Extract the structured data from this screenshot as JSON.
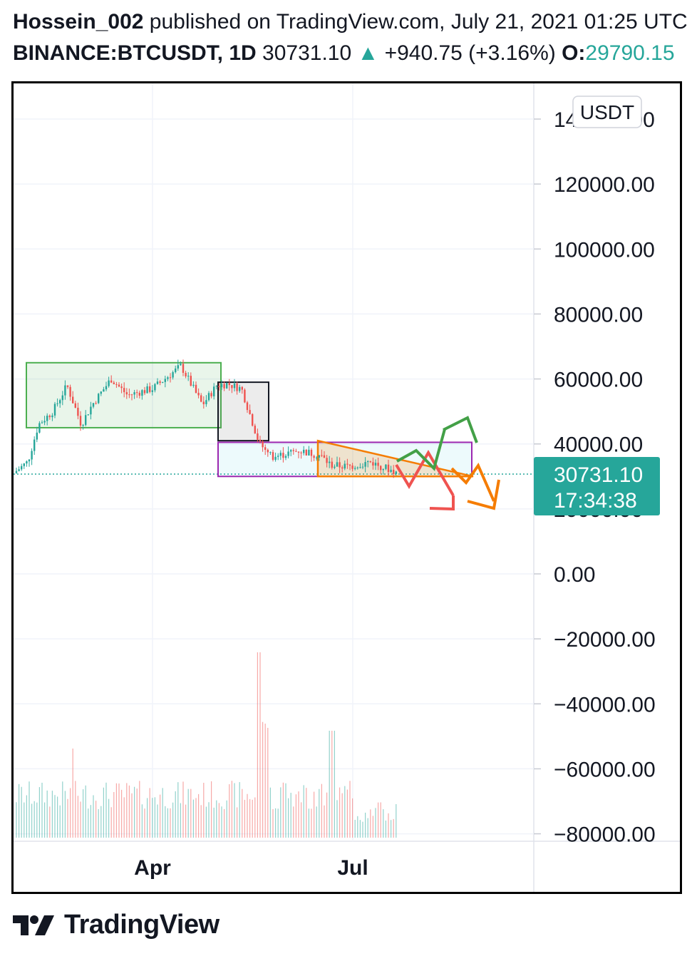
{
  "header": {
    "author": "Hossein_002",
    "published_text": "published on TradingView.com, July 21, 2021 01:25 UTC",
    "symbol": "BINANCE:BTCUSDT, 1D",
    "last": "30731.10",
    "change": "+940.75 (+3.16%)",
    "open_label": "O:",
    "open_value": "29790.15"
  },
  "colors": {
    "up": "#26a69a",
    "down": "#ef5350",
    "green_box": "#4caf50",
    "purple_box": "#9c27b0",
    "triangle": "#f57c00",
    "red_arrow": "#ef5350",
    "green_arrow": "#43a047",
    "orange_arrow": "#f57c00"
  },
  "chart_data": {
    "type": "candlestick",
    "currency_label": "USDT",
    "y_ticks": [
      "140000.00",
      "120000.00",
      "100000.00",
      "80000.00",
      "60000.00",
      "40000.00",
      "20000.00",
      "0.00",
      "−20000.00",
      "−40000.00",
      "−60000.00",
      "−80000.00"
    ],
    "y_range": [
      -80000,
      140000
    ],
    "x_labels": [
      "Apr",
      "Jul"
    ],
    "last_price": "30731.10",
    "countdown": "17:34:38",
    "volume_note": "volume histogram shown at bottom",
    "zones": [
      {
        "name": "range",
        "y_low": 45000,
        "y_high": 65000
      },
      {
        "name": "drop",
        "y_low": 41000,
        "y_high": 59000
      },
      {
        "name": "range",
        "y_low": 30000,
        "y_high": 40500
      },
      {
        "name": "descending-triangle",
        "y_low": 30000,
        "y_high": 41000
      }
    ],
    "scenarios": [
      "bullish breakout",
      "bearish breakdown",
      "bearish retest"
    ]
  },
  "brand": {
    "wordmark": "TradingView"
  }
}
